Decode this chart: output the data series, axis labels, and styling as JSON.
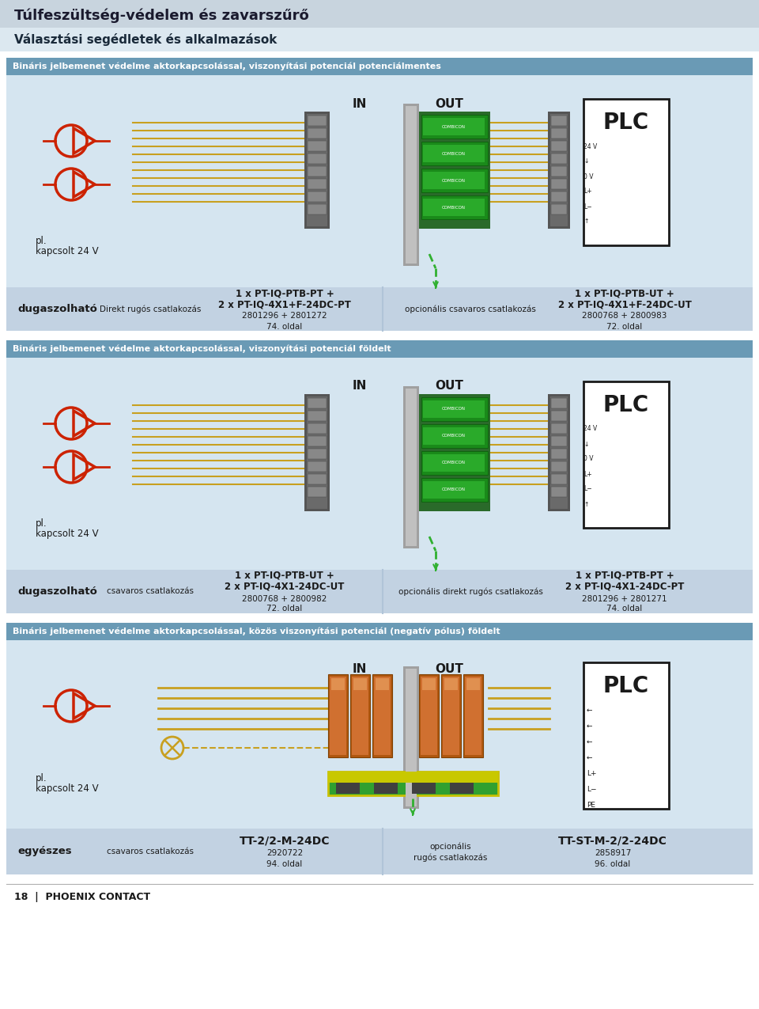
{
  "page_title": "TülFeszültsg-védelem és zavarszűrő",
  "page_subtitle": "Választási segédletek és alkalmazások",
  "section1_title": "Bináris jelbemenet védelme aktorkapcsolással, viszonyítási potenciál potenciálmentes",
  "section2_title": "Bináris jelbemenet védelme aktorkapcsolással, viszonyítási potenciál földelt",
  "section3_title": "Bináris jelbemenet védelme aktorkapcsolással, közös viszonyítási potenciál (negatív pólus) földelt",
  "footer_text": "18  |  PHOENIX CONTACT",
  "section1_left_label": "dugaszolható",
  "section1_left_connection": "Direkt rugós csatlakozás",
  "section1_left_product1": "1 x PT-IQ-PTB-PT +",
  "section1_left_product2": "2 x PT-IQ-4X1+F-24DC-PT",
  "section1_left_codes": "2801296 + 2801272",
  "section1_left_page": "74. oldal",
  "section1_right_connection": "opcionális csavaros csatlakozás",
  "section1_right_product1": "1 x PT-IQ-PTB-UT +",
  "section1_right_product2": "2 x PT-IQ-4X1+F-24DC-UT",
  "section1_right_codes": "2800768 + 2800983",
  "section1_right_page": "72. oldal",
  "section2_left_label": "dugaszolható",
  "section2_left_connection": "csavaros csatlakozás",
  "section2_left_product1": "1 x PT-IQ-PTB-UT +",
  "section2_left_product2": "2 x PT-IQ-4X1-24DC-UT",
  "section2_left_codes": "2800768 + 2800982",
  "section2_left_page": "72. oldal",
  "section2_right_connection": "opcionális direkt rugós csatlakozás",
  "section2_right_product1": "1 x PT-IQ-PTB-PT +",
  "section2_right_product2": "2 x PT-IQ-4X1-24DC-PT",
  "section2_right_codes": "2801296 + 2801271",
  "section2_right_page": "74. oldal",
  "section3_left_label": "egyészes",
  "section3_left_connection": "csavaros csatlakozás",
  "section3_left_product": "TT-2/2-M-24DC",
  "section3_left_codes": "2920722",
  "section3_left_page": "94. oldal",
  "section3_right_connection": "opcionális",
  "section3_right_connection2": "rugós csatlakozás",
  "section3_right_product": "TT-ST-M-2/2-24DC",
  "section3_right_codes": "2858917",
  "section3_right_page": "96. oldal",
  "pl_text1": "pl.",
  "pl_text2": "kapcsolt 24 V",
  "in_label": "IN",
  "out_label": "OUT",
  "plc_label": "PLC",
  "wire_color_gold": "#c8a020",
  "wire_color_green": "#50a040",
  "device_dark": "#404040",
  "device_medium": "#606060",
  "device_green": "#30a050"
}
